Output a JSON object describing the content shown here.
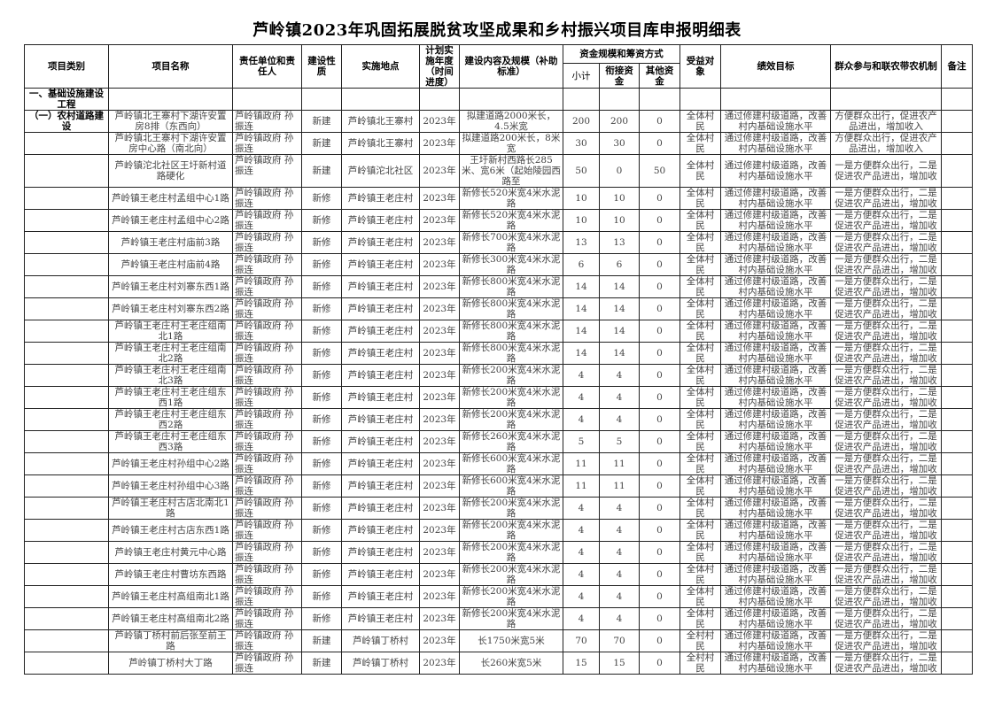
{
  "title": "芦岭镇2023年巩固拓展脱贫攻坚成果和乡村振兴项目库申报明细表",
  "headers": {
    "category": "项目类别",
    "name": "项目名称",
    "responsible": "责任单位和责任人",
    "nature": "建设性质",
    "location": "实施地点",
    "year": "计划实施年度（时间进度）",
    "content": "建设内容及规模（补助标准）",
    "funds": "资金规模和筹资方式",
    "subtotal": "小计",
    "linked": "衔接资金",
    "other": "其他资金",
    "beneficiary": "受益对象",
    "goal": "绩效目标",
    "mechanism": "群众参与和联农带农机制",
    "remark": "备注"
  },
  "section": "一、基础设施建设工程",
  "rows": [
    {
      "cat": "（一）农村道路建设",
      "name": "芦岭镇北王寨村下湖许安置房8排（东西向）",
      "resp": "芦岭镇政府 孙振连",
      "nature": "新建",
      "loc": "芦岭镇北王寨村",
      "year": "2023年",
      "content": "拟建道路2000米长，4.5米宽",
      "sub": "200",
      "linked": "200",
      "other": "0",
      "ben": "全体村民",
      "goal": "通过修建村级道路，改善村内基础设施水平",
      "mech": "方便群众出行，促进农产品进出，增加收入"
    },
    {
      "cat": "",
      "name": "芦岭镇北王寨村下湖许安置房中心路（南北向）",
      "resp": "芦岭镇政府 孙振连",
      "nature": "新建",
      "loc": "芦岭镇北王寨村",
      "year": "2023年",
      "content": "拟建道路200米长，8米宽",
      "sub": "30",
      "linked": "30",
      "other": "0",
      "ben": "全体村民",
      "goal": "通过修建村级道路，改善村内基础设施水平",
      "mech": "方便群众出行，促进农产品进出，增加收入"
    },
    {
      "cat": "",
      "name": "芦岭镇沱北社区王圩新村道路硬化",
      "resp": "芦岭镇政府 孙振连",
      "nature": "新建",
      "loc": "芦岭镇沱北社区",
      "year": "2023年",
      "content": "王圩新村西路长285米、宽6米（起始陵园西路至",
      "sub": "50",
      "linked": "0",
      "other": "50",
      "ben": "全体村民",
      "goal": "通过修建村级道路，改善村内基础设施水平",
      "mech": "一是方便群众出行，二是促进农产品进出，增加收"
    },
    {
      "cat": "",
      "name": "芦岭镇王老庄村孟组中心1路",
      "resp": "芦岭镇政府 孙振连",
      "nature": "新修",
      "loc": "芦岭镇王老庄村",
      "year": "2023年",
      "content": "新修长520米宽4米水泥路",
      "sub": "10",
      "linked": "10",
      "other": "0",
      "ben": "全体村民",
      "goal": "通过修建村级道路，改善村内基础设施水平",
      "mech": "一是方便群众出行，二是促进农产品进出，增加收"
    },
    {
      "cat": "",
      "name": "芦岭镇王老庄村孟组中心2路",
      "resp": "芦岭镇政府 孙振连",
      "nature": "新修",
      "loc": "芦岭镇王老庄村",
      "year": "2023年",
      "content": "新修长520米宽4米水泥路",
      "sub": "10",
      "linked": "10",
      "other": "0",
      "ben": "全体村民",
      "goal": "通过修建村级道路，改善村内基础设施水平",
      "mech": "一是方便群众出行，二是促进农产品进出，增加收"
    },
    {
      "cat": "",
      "name": "芦岭镇王老庄村庙前3路",
      "resp": "芦岭镇政府 孙振连",
      "nature": "新修",
      "loc": "芦岭镇王老庄村",
      "year": "2023年",
      "content": "新修长700米宽4米水泥路",
      "sub": "13",
      "linked": "13",
      "other": "0",
      "ben": "全体村民",
      "goal": "通过修建村级道路，改善村内基础设施水平",
      "mech": "一是方便群众出行，二是促进农产品进出，增加收"
    },
    {
      "cat": "",
      "name": "芦岭镇王老庄村庙前4路",
      "resp": "芦岭镇政府 孙振连",
      "nature": "新修",
      "loc": "芦岭镇王老庄村",
      "year": "2023年",
      "content": "新修长300米宽4米水泥路",
      "sub": "6",
      "linked": "6",
      "other": "0",
      "ben": "全体村民",
      "goal": "通过修建村级道路，改善村内基础设施水平",
      "mech": "一是方便群众出行，二是促进农产品进出，增加收"
    },
    {
      "cat": "",
      "name": "芦岭镇王老庄村刘寨东西1路",
      "resp": "芦岭镇政府 孙振连",
      "nature": "新修",
      "loc": "芦岭镇王老庄村",
      "year": "2023年",
      "content": "新修长800米宽4米水泥路",
      "sub": "14",
      "linked": "14",
      "other": "0",
      "ben": "全体村民",
      "goal": "通过修建村级道路，改善村内基础设施水平",
      "mech": "一是方便群众出行，二是促进农产品进出，增加收"
    },
    {
      "cat": "",
      "name": "芦岭镇王老庄村刘寨东西2路",
      "resp": "芦岭镇政府 孙振连",
      "nature": "新修",
      "loc": "芦岭镇王老庄村",
      "year": "2023年",
      "content": "新修长800米宽4米水泥路",
      "sub": "14",
      "linked": "14",
      "other": "0",
      "ben": "全体村民",
      "goal": "通过修建村级道路，改善村内基础设施水平",
      "mech": "一是方便群众出行，二是促进农产品进出，增加收"
    },
    {
      "cat": "",
      "name": "芦岭镇王老庄村王老庄组南北1路",
      "resp": "芦岭镇政府 孙振连",
      "nature": "新修",
      "loc": "芦岭镇王老庄村",
      "year": "2023年",
      "content": "新修长800米宽4米水泥路",
      "sub": "14",
      "linked": "14",
      "other": "0",
      "ben": "全体村民",
      "goal": "通过修建村级道路，改善村内基础设施水平",
      "mech": "一是方便群众出行，二是促进农产品进出，增加收"
    },
    {
      "cat": "",
      "name": "芦岭镇王老庄村王老庄组南北2路",
      "resp": "芦岭镇政府 孙振连",
      "nature": "新修",
      "loc": "芦岭镇王老庄村",
      "year": "2023年",
      "content": "新修长800米宽4米水泥路",
      "sub": "14",
      "linked": "14",
      "other": "0",
      "ben": "全体村民",
      "goal": "通过修建村级道路，改善村内基础设施水平",
      "mech": "一是方便群众出行，二是促进农产品进出，增加收"
    },
    {
      "cat": "",
      "name": "芦岭镇王老庄村王老庄组南北3路",
      "resp": "芦岭镇政府 孙振连",
      "nature": "新修",
      "loc": "芦岭镇王老庄村",
      "year": "2023年",
      "content": "新修长200米宽4米水泥路",
      "sub": "4",
      "linked": "4",
      "other": "0",
      "ben": "全体村民",
      "goal": "通过修建村级道路，改善村内基础设施水平",
      "mech": "一是方便群众出行，二是促进农产品进出，增加收"
    },
    {
      "cat": "",
      "name": "芦岭镇王老庄村王老庄组东西1路",
      "resp": "芦岭镇政府 孙振连",
      "nature": "新修",
      "loc": "芦岭镇王老庄村",
      "year": "2023年",
      "content": "新修长200米宽4米水泥路",
      "sub": "4",
      "linked": "4",
      "other": "0",
      "ben": "全体村民",
      "goal": "通过修建村级道路，改善村内基础设施水平",
      "mech": "一是方便群众出行，二是促进农产品进出，增加收"
    },
    {
      "cat": "",
      "name": "芦岭镇王老庄村王老庄组东西2路",
      "resp": "芦岭镇政府 孙振连",
      "nature": "新修",
      "loc": "芦岭镇王老庄村",
      "year": "2023年",
      "content": "新修长200米宽4米水泥路",
      "sub": "4",
      "linked": "4",
      "other": "0",
      "ben": "全体村民",
      "goal": "通过修建村级道路，改善村内基础设施水平",
      "mech": "一是方便群众出行，二是促进农产品进出，增加收"
    },
    {
      "cat": "",
      "name": "芦岭镇王老庄村王老庄组东西3路",
      "resp": "芦岭镇政府 孙振连",
      "nature": "新修",
      "loc": "芦岭镇王老庄村",
      "year": "2023年",
      "content": "新修长260米宽4米水泥路",
      "sub": "5",
      "linked": "5",
      "other": "0",
      "ben": "全体村民",
      "goal": "通过修建村级道路，改善村内基础设施水平",
      "mech": "一是方便群众出行，二是促进农产品进出，增加收"
    },
    {
      "cat": "",
      "name": "芦岭镇王老庄村孙组中心2路",
      "resp": "芦岭镇政府 孙振连",
      "nature": "新修",
      "loc": "芦岭镇王老庄村",
      "year": "2023年",
      "content": "新修长600米宽4米水泥路",
      "sub": "11",
      "linked": "11",
      "other": "0",
      "ben": "全体村民",
      "goal": "通过修建村级道路，改善村内基础设施水平",
      "mech": "一是方便群众出行，二是促进农产品进出，增加收"
    },
    {
      "cat": "",
      "name": "芦岭镇王老庄村孙组中心3路",
      "resp": "芦岭镇政府 孙振连",
      "nature": "新修",
      "loc": "芦岭镇王老庄村",
      "year": "2023年",
      "content": "新修长600米宽4米水泥路",
      "sub": "11",
      "linked": "11",
      "other": "0",
      "ben": "全体村民",
      "goal": "通过修建村级道路，改善村内基础设施水平",
      "mech": "一是方便群众出行，二是促进农产品进出，增加收"
    },
    {
      "cat": "",
      "name": "芦岭镇王老庄村古店北南北1路",
      "resp": "芦岭镇政府 孙振连",
      "nature": "新修",
      "loc": "芦岭镇王老庄村",
      "year": "2023年",
      "content": "新修长200米宽4米水泥路",
      "sub": "4",
      "linked": "4",
      "other": "0",
      "ben": "全体村民",
      "goal": "通过修建村级道路，改善村内基础设施水平",
      "mech": "一是方便群众出行，二是促进农产品进出，增加收"
    },
    {
      "cat": "",
      "name": "芦岭镇王老庄村古店东西1路",
      "resp": "芦岭镇政府 孙振连",
      "nature": "新修",
      "loc": "芦岭镇王老庄村",
      "year": "2023年",
      "content": "新修长200米宽4米水泥路",
      "sub": "4",
      "linked": "4",
      "other": "0",
      "ben": "全体村民",
      "goal": "通过修建村级道路，改善村内基础设施水平",
      "mech": "一是方便群众出行，二是促进农产品进出，增加收"
    },
    {
      "cat": "",
      "name": "芦岭镇王老庄村黄元中心路",
      "resp": "芦岭镇政府 孙振连",
      "nature": "新修",
      "loc": "芦岭镇王老庄村",
      "year": "2023年",
      "content": "新修长200米宽4米水泥路",
      "sub": "4",
      "linked": "4",
      "other": "0",
      "ben": "全体村民",
      "goal": "通过修建村级道路，改善村内基础设施水平",
      "mech": "一是方便群众出行，二是促进农产品进出，增加收"
    },
    {
      "cat": "",
      "name": "芦岭镇王老庄村曹坊东西路",
      "resp": "芦岭镇政府 孙振连",
      "nature": "新修",
      "loc": "芦岭镇王老庄村",
      "year": "2023年",
      "content": "新修长200米宽4米水泥路",
      "sub": "4",
      "linked": "4",
      "other": "0",
      "ben": "全体村民",
      "goal": "通过修建村级道路，改善村内基础设施水平",
      "mech": "一是方便群众出行，二是促进农产品进出，增加收"
    },
    {
      "cat": "",
      "name": "芦岭镇王老庄村高组南北1路",
      "resp": "芦岭镇政府 孙振连",
      "nature": "新修",
      "loc": "芦岭镇王老庄村",
      "year": "2023年",
      "content": "新修长200米宽4米水泥路",
      "sub": "4",
      "linked": "4",
      "other": "0",
      "ben": "全体村民",
      "goal": "通过修建村级道路，改善村内基础设施水平",
      "mech": "一是方便群众出行，二是促进农产品进出，增加收"
    },
    {
      "cat": "",
      "name": "芦岭镇王老庄村高组南北2路",
      "resp": "芦岭镇政府 孙振连",
      "nature": "新修",
      "loc": "芦岭镇王老庄村",
      "year": "2023年",
      "content": "新修长200米宽4米水泥路",
      "sub": "4",
      "linked": "4",
      "other": "0",
      "ben": "全体村民",
      "goal": "通过修建村级道路，改善村内基础设施水平",
      "mech": "一是方便群众出行，二是促进农产品进出，增加收"
    },
    {
      "cat": "",
      "name": "芦岭镇丁桥村前后张至前王路",
      "resp": "芦岭镇政府 孙振连",
      "nature": "新建",
      "loc": "芦岭镇丁桥村",
      "year": "2023年",
      "content": "长1750米宽5米",
      "sub": "70",
      "linked": "70",
      "other": "0",
      "ben": "全村村民",
      "goal": "通过修建村级道路，改善村内基础设施水平",
      "mech": "一是方便群众出行，二是促进农产品进出，增加收"
    },
    {
      "cat": "",
      "name": "芦岭镇丁桥村大丁路",
      "resp": "芦岭镇政府 孙振连",
      "nature": "新建",
      "loc": "芦岭镇丁桥村",
      "year": "2023年",
      "content": "长260米宽5米",
      "sub": "15",
      "linked": "15",
      "other": "0",
      "ben": "全村村民",
      "goal": "通过修建村级道路，改善村内基础设施水平",
      "mech": "一是方便群众出行，二是促进农产品进出，增加收"
    }
  ]
}
